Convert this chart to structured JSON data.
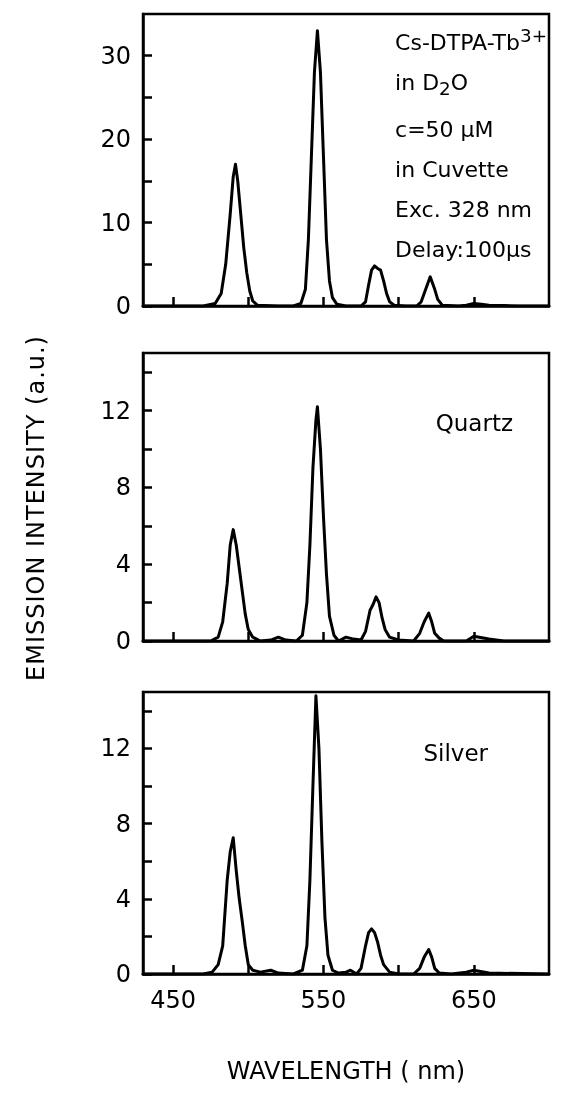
{
  "chart_data": [
    {
      "type": "line",
      "ylabel": "EMISSION INTENSITY (a.u.)",
      "annotations": [
        "Cs-DTPA-Tb$^{3+}$",
        "in D$_{2}$O",
        "c=50 μM",
        "in Cuvette",
        "Exc. 328 nm",
        "Delay:100μs"
      ],
      "xlim": [
        430,
        700
      ],
      "xticks": [
        {
          "value": 450,
          "label": null
        },
        {
          "value": 500,
          "label": null
        },
        {
          "value": 550,
          "label": null
        },
        {
          "value": 600,
          "label": null
        },
        {
          "value": 650,
          "label": null
        }
      ],
      "ylim": [
        0,
        35
      ],
      "yticks": [
        0,
        {
          "value": 5,
          "label": null
        },
        10,
        {
          "value": 15,
          "label": null
        },
        20,
        {
          "value": 25,
          "label": null
        },
        30
      ],
      "tick_labels": "y",
      "marker": "none",
      "line_style": "solid",
      "series": [
        {
          "color": "#000000",
          "x": [
            430,
            470,
            478,
            482,
            485,
            488,
            490,
            491.5,
            493,
            495,
            497,
            499,
            501,
            503,
            506,
            520,
            530,
            535,
            538,
            540,
            542,
            544,
            546,
            548,
            550,
            552,
            554,
            556,
            559,
            565,
            575,
            578,
            580,
            582,
            584,
            586,
            588,
            590,
            592,
            594,
            597,
            605,
            612,
            615,
            618,
            621,
            624,
            626,
            629,
            640,
            645,
            650,
            655,
            660,
            670,
            680,
            700
          ],
          "values": [
            0,
            0,
            0.3,
            1.5,
            5,
            11,
            15.5,
            17,
            15,
            11,
            7,
            4,
            1.8,
            0.6,
            0.1,
            0,
            0,
            0.3,
            2,
            8,
            18,
            28,
            33,
            28,
            18,
            8,
            3,
            1,
            0.2,
            0,
            0,
            0.5,
            2.5,
            4.3,
            4.8,
            4.5,
            4.3,
            3,
            1.5,
            0.5,
            0.1,
            0,
            0,
            0.5,
            2,
            3.5,
            2,
            0.8,
            0.1,
            0,
            0.1,
            0.3,
            0.2,
            0.1,
            0.05,
            0,
            0
          ]
        }
      ]
    },
    {
      "type": "line",
      "annotations": [
        "Quartz"
      ],
      "xlim": [
        430,
        700
      ],
      "xticks": [
        {
          "value": 450,
          "label": null
        },
        {
          "value": 500,
          "label": null
        },
        {
          "value": 550,
          "label": null
        },
        {
          "value": 600,
          "label": null
        },
        {
          "value": 650,
          "label": null
        }
      ],
      "ylim": [
        0,
        15
      ],
      "yticks": [
        0,
        {
          "value": 2,
          "label": null
        },
        4,
        {
          "value": 6,
          "label": null
        },
        8,
        {
          "value": 10,
          "label": null
        },
        12,
        {
          "value": 14,
          "label": null
        }
      ],
      "tick_labels": "y",
      "marker": "none",
      "line_style": "solid",
      "series": [
        {
          "color": "#000000",
          "x": [
            430,
            475,
            480,
            483,
            486,
            488,
            490,
            492,
            494,
            496,
            498,
            500,
            503,
            508,
            515,
            520,
            525,
            532,
            536,
            539,
            541,
            543,
            545,
            546,
            548,
            550,
            552,
            554,
            557,
            560,
            565,
            570,
            575,
            578,
            581,
            583,
            585,
            587,
            589,
            591,
            594,
            600,
            610,
            614,
            617,
            620,
            622,
            624,
            627,
            630,
            645,
            650,
            660,
            670,
            700
          ],
          "values": [
            0,
            0,
            0.2,
            1,
            3,
            5,
            5.8,
            5,
            3.8,
            2.6,
            1.4,
            0.6,
            0.2,
            0,
            0.05,
            0.2,
            0.05,
            0,
            0.3,
            2,
            5,
            9,
            11.5,
            12.2,
            10,
            6.5,
            3.5,
            1.3,
            0.3,
            0,
            0.2,
            0.1,
            0.05,
            0.5,
            1.6,
            1.9,
            2.3,
            2,
            1.2,
            0.6,
            0.2,
            0.05,
            0,
            0.4,
            1,
            1.45,
            1,
            0.4,
            0.15,
            0,
            0,
            0.25,
            0.1,
            0,
            0
          ]
        }
      ]
    },
    {
      "type": "line",
      "xlabel": "WAVELENGTH ( nm)",
      "annotations": [
        "Silver"
      ],
      "xlim": [
        430,
        700
      ],
      "xticks": [
        450,
        {
          "value": 500,
          "label": null
        },
        550,
        {
          "value": 600,
          "label": null
        },
        650
      ],
      "ylim": [
        0,
        15
      ],
      "yticks": [
        0,
        {
          "value": 2,
          "label": null
        },
        4,
        {
          "value": 6,
          "label": null
        },
        8,
        {
          "value": 10,
          "label": null
        },
        12,
        {
          "value": 14,
          "label": null
        }
      ],
      "marker": "none",
      "line_style": "solid",
      "series": [
        {
          "color": "#000000",
          "x": [
            430,
            470,
            476,
            480,
            483,
            486,
            488,
            490,
            492,
            494,
            496,
            498,
            500,
            503,
            508,
            515,
            520,
            530,
            536,
            539,
            541,
            543,
            545,
            547,
            549,
            551,
            553,
            556,
            560,
            565,
            568,
            572,
            575,
            578,
            580,
            582,
            584,
            586,
            588,
            590,
            594,
            600,
            610,
            614,
            617,
            620,
            622,
            624,
            627,
            635,
            645,
            650,
            660,
            700
          ],
          "values": [
            0,
            0,
            0.1,
            0.5,
            1.5,
            5,
            6.5,
            7.25,
            5.5,
            4,
            2.8,
            1.5,
            0.5,
            0.2,
            0.1,
            0.2,
            0.05,
            0,
            0.2,
            1.5,
            5,
            10,
            14.8,
            12,
            7,
            3,
            1,
            0.2,
            0.05,
            0.1,
            0.2,
            0,
            0.3,
            1.5,
            2.2,
            2.4,
            2.2,
            1.7,
            1,
            0.5,
            0.1,
            0,
            0,
            0.3,
            0.9,
            1.3,
            0.9,
            0.3,
            0.05,
            0,
            0.1,
            0.2,
            0.05,
            0
          ]
        }
      ]
    }
  ]
}
